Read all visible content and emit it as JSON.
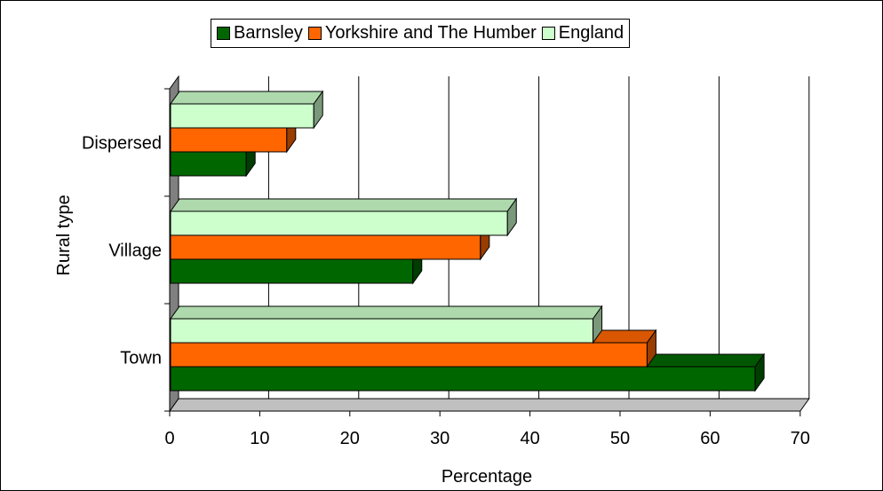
{
  "chart_data": {
    "type": "bar",
    "orientation": "horizontal",
    "style": "3d",
    "categories": [
      "Town",
      "Village",
      "Dispersed"
    ],
    "series": [
      {
        "name": "Barnsley",
        "color": "#006600",
        "values": [
          65,
          27,
          8.5
        ]
      },
      {
        "name": "Yorkshire and The Humber",
        "color": "#ff6600",
        "values": [
          53,
          34.5,
          13
        ]
      },
      {
        "name": "England",
        "color": "#ccffcc",
        "values": [
          47,
          37.5,
          16
        ]
      }
    ],
    "xlabel": "Percentage",
    "ylabel": "Rural type",
    "xlim": [
      0,
      70
    ],
    "xticks": [
      "0",
      "10",
      "20",
      "30",
      "40",
      "50",
      "60",
      "70"
    ],
    "grid": "vertical",
    "legend_position": "top"
  }
}
